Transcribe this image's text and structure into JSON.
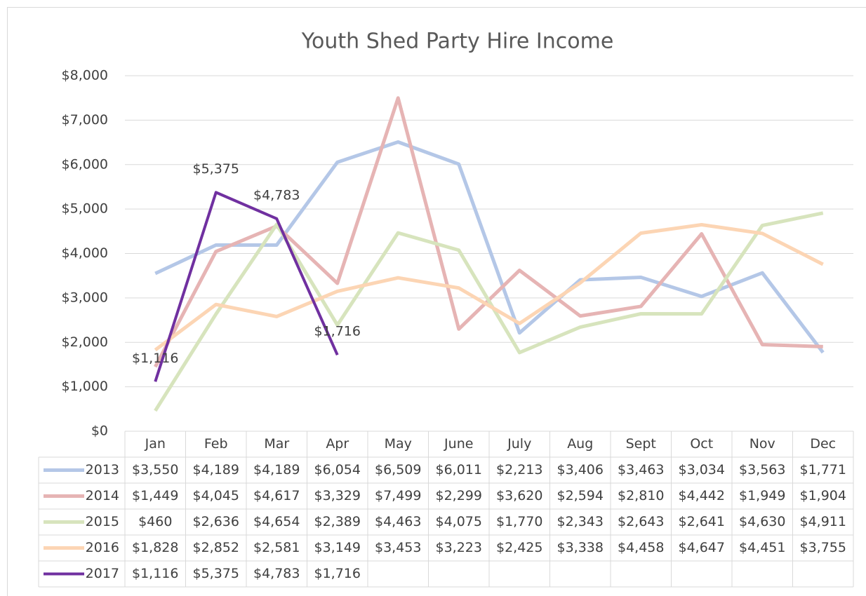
{
  "chart_data": {
    "type": "line",
    "title": "Youth Shed Party Hire Income",
    "categories": [
      "Jan",
      "Feb",
      "Mar",
      "Apr",
      "May",
      "June",
      "July",
      "Aug",
      "Sept",
      "Oct",
      "Nov",
      "Dec"
    ],
    "series": [
      {
        "name": "2013",
        "color": "#b4c7e7",
        "values": [
          3550,
          4189,
          4189,
          6054,
          6509,
          6011,
          2213,
          3406,
          3463,
          3034,
          3563,
          1771
        ],
        "value_labels": [
          "$3,550",
          "$4,189",
          "$4,189",
          "$6,054",
          "$6,509",
          "$6,011",
          "$2,213",
          "$3,406",
          "$3,463",
          "$3,034",
          "$3,563",
          "$1,771"
        ]
      },
      {
        "name": "2014",
        "color": "#e6b4b4",
        "values": [
          1449,
          4045,
          4617,
          3329,
          7499,
          2299,
          3620,
          2594,
          2810,
          4442,
          1949,
          1904
        ],
        "value_labels": [
          "$1,449",
          "$4,045",
          "$4,617",
          "$3,329",
          "$7,499",
          "$2,299",
          "$3,620",
          "$2,594",
          "$2,810",
          "$4,442",
          "$1,949",
          "$1,904"
        ]
      },
      {
        "name": "2015",
        "color": "#d7e4bd",
        "values": [
          460,
          2636,
          4654,
          2389,
          4463,
          4075,
          1770,
          2343,
          2643,
          2641,
          4630,
          4911
        ],
        "value_labels": [
          "$460",
          "$2,636",
          "$4,654",
          "$2,389",
          "$4,463",
          "$4,075",
          "$1,770",
          "$2,343",
          "$2,643",
          "$2,641",
          "$4,630",
          "$4,911"
        ]
      },
      {
        "name": "2016",
        "color": "#fcd5b4",
        "values": [
          1828,
          2852,
          2581,
          3149,
          3453,
          3223,
          2425,
          3338,
          4458,
          4647,
          4451,
          3755
        ],
        "value_labels": [
          "$1,828",
          "$2,852",
          "$2,581",
          "$3,149",
          "$3,453",
          "$3,223",
          "$2,425",
          "$3,338",
          "$4,458",
          "$4,647",
          "$4,451",
          "$3,755"
        ]
      },
      {
        "name": "2017",
        "color": "#7030a0",
        "data_labels": true,
        "values": [
          1116,
          5375,
          4783,
          1716,
          null,
          null,
          null,
          null,
          null,
          null,
          null,
          null
        ],
        "value_labels": [
          "$1,116",
          "$5,375",
          "$4,783",
          "$1,716",
          null,
          null,
          null,
          null,
          null,
          null,
          null,
          null
        ]
      }
    ],
    "ylim": [
      0,
      8000
    ],
    "yticks": [
      {
        "value": 0,
        "label": "$0"
      },
      {
        "value": 1000,
        "label": "$1,000"
      },
      {
        "value": 2000,
        "label": "$2,000"
      },
      {
        "value": 3000,
        "label": "$3,000"
      },
      {
        "value": 4000,
        "label": "$4,000"
      },
      {
        "value": 5000,
        "label": "$5,000"
      },
      {
        "value": 6000,
        "label": "$6,000"
      },
      {
        "value": 7000,
        "label": "$7,000"
      },
      {
        "value": 8000,
        "label": "$8,000"
      }
    ],
    "grid": true,
    "data_table": true
  }
}
